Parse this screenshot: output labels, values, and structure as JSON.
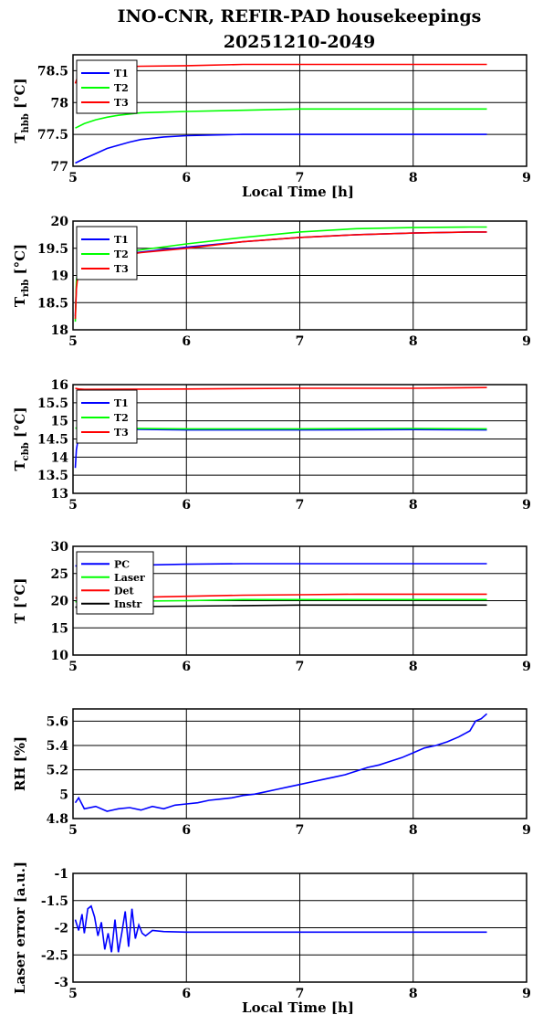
{
  "title_line1": "INO-CNR, REFIR-PAD housekeepings",
  "title_line2": "20251210-2049",
  "chart_data": [
    {
      "type": "line",
      "ylabel_main": "T",
      "ylabel_sub": "hbb",
      "ylabel_unit": " [°C]",
      "xlabel": "Local Time [h]",
      "xlim": [
        5,
        9
      ],
      "ylim": [
        77,
        78.75
      ],
      "yticks": [
        77,
        77.5,
        78,
        78.5
      ],
      "xticks": [
        5,
        6,
        7,
        8,
        9
      ],
      "legend_position": "top-left",
      "series": [
        {
          "name": "T1",
          "color": "#0000ff",
          "x": [
            5.02,
            5.1,
            5.2,
            5.3,
            5.4,
            5.5,
            5.6,
            5.8,
            6.0,
            6.5,
            7.0,
            7.5,
            8.0,
            8.5,
            8.65
          ],
          "y": [
            77.05,
            77.12,
            77.2,
            77.28,
            77.33,
            77.38,
            77.42,
            77.46,
            77.48,
            77.5,
            77.5,
            77.5,
            77.5,
            77.5,
            77.5
          ]
        },
        {
          "name": "T2",
          "color": "#00ff00",
          "x": [
            5.02,
            5.1,
            5.2,
            5.3,
            5.4,
            5.5,
            5.6,
            5.8,
            6.0,
            6.5,
            7.0,
            7.5,
            8.0,
            8.5,
            8.65
          ],
          "y": [
            77.6,
            77.67,
            77.73,
            77.77,
            77.8,
            77.82,
            77.84,
            77.85,
            77.86,
            77.88,
            77.9,
            77.9,
            77.9,
            77.9,
            77.9
          ]
        },
        {
          "name": "T3",
          "color": "#ff0000",
          "x": [
            5.02,
            5.05,
            5.1,
            5.2,
            5.4,
            5.6,
            6.0,
            6.5,
            7.0,
            7.5,
            8.0,
            8.5,
            8.65
          ],
          "y": [
            78.3,
            78.45,
            78.52,
            78.55,
            78.56,
            78.57,
            78.58,
            78.6,
            78.6,
            78.6,
            78.6,
            78.6,
            78.6
          ]
        }
      ]
    },
    {
      "type": "line",
      "ylabel_main": "T",
      "ylabel_sub": "rbb",
      "ylabel_unit": " [°C]",
      "xlabel": "",
      "xlim": [
        5,
        9
      ],
      "ylim": [
        18,
        20
      ],
      "yticks": [
        18,
        18.5,
        19,
        19.5,
        20
      ],
      "xticks": [
        5,
        6,
        7,
        8,
        9
      ],
      "legend_position": "top-left",
      "series": [
        {
          "name": "T1",
          "color": "#0000ff",
          "x": [
            5.02,
            5.03,
            5.05,
            5.08,
            5.2,
            5.4,
            5.6,
            6.0,
            6.5,
            7.0,
            7.5,
            8.0,
            8.5,
            8.65
          ],
          "y": [
            18.25,
            18.8,
            19.2,
            19.28,
            19.33,
            19.38,
            19.43,
            19.52,
            19.62,
            19.7,
            19.75,
            19.78,
            19.8,
            19.8
          ]
        },
        {
          "name": "T2",
          "color": "#00ff00",
          "x": [
            5.02,
            5.03,
            5.05,
            5.08,
            5.2,
            5.4,
            5.6,
            6.0,
            6.5,
            7.0,
            7.5,
            8.0,
            8.5,
            8.65
          ],
          "y": [
            18.15,
            18.9,
            19.25,
            19.33,
            19.38,
            19.42,
            19.47,
            19.58,
            19.7,
            19.8,
            19.86,
            19.88,
            19.89,
            19.89
          ]
        },
        {
          "name": "T3",
          "color": "#ff0000",
          "x": [
            5.02,
            5.03,
            5.05,
            5.08,
            5.2,
            5.4,
            5.6,
            6.0,
            6.5,
            7.0,
            7.5,
            8.0,
            8.5,
            8.65
          ],
          "y": [
            18.2,
            18.75,
            19.15,
            19.25,
            19.3,
            19.36,
            19.42,
            19.5,
            19.62,
            19.7,
            19.75,
            19.78,
            19.8,
            19.8
          ]
        }
      ]
    },
    {
      "type": "line",
      "ylabel_main": "T",
      "ylabel_sub": "cbb",
      "ylabel_unit": " [°C]",
      "xlabel": "",
      "xlim": [
        5,
        9
      ],
      "ylim": [
        13,
        16
      ],
      "yticks": [
        13,
        13.5,
        14,
        14.5,
        15,
        15.5,
        16
      ],
      "xticks": [
        5,
        6,
        7,
        8,
        9
      ],
      "legend_position": "top-left",
      "series": [
        {
          "name": "T1",
          "color": "#0000ff",
          "x": [
            5.02,
            5.03,
            5.05,
            5.08,
            5.15,
            6.0,
            7.0,
            8.0,
            8.65
          ],
          "y": [
            13.7,
            14.2,
            14.6,
            14.75,
            14.78,
            14.75,
            14.75,
            14.76,
            14.75
          ]
        },
        {
          "name": "T2",
          "color": "#00ff00",
          "x": [
            5.02,
            5.05,
            5.08,
            5.15,
            6.0,
            7.0,
            8.0,
            8.65
          ],
          "y": [
            14.8,
            14.8,
            14.8,
            14.8,
            14.78,
            14.78,
            14.79,
            14.78
          ]
        },
        {
          "name": "T3",
          "color": "#ff0000",
          "x": [
            5.02,
            5.05,
            5.1,
            6.0,
            7.0,
            8.0,
            8.65
          ],
          "y": [
            15.9,
            15.88,
            15.87,
            15.88,
            15.9,
            15.9,
            15.92
          ]
        }
      ]
    },
    {
      "type": "line",
      "ylabel_main": "T [°C]",
      "ylabel_sub": "",
      "ylabel_unit": "",
      "xlabel": "",
      "xlim": [
        5,
        9
      ],
      "ylim": [
        10,
        30
      ],
      "yticks": [
        10,
        15,
        20,
        25,
        30
      ],
      "xticks": [
        5,
        6,
        7,
        8,
        9
      ],
      "legend_position": "top-left",
      "series": [
        {
          "name": "PC",
          "color": "#0000ff",
          "x": [
            5.02,
            5.5,
            6.0,
            6.5,
            7.0,
            7.5,
            8.0,
            8.5,
            8.65
          ],
          "y": [
            26.4,
            26.5,
            26.7,
            26.8,
            26.8,
            26.8,
            26.8,
            26.8,
            26.8
          ]
        },
        {
          "name": "Laser",
          "color": "#00ff00",
          "x": [
            5.02,
            5.5,
            6.0,
            6.5,
            7.0,
            7.5,
            8.0,
            8.5,
            8.65
          ],
          "y": [
            19.8,
            19.9,
            20.0,
            20.2,
            20.2,
            20.2,
            20.2,
            20.2,
            20.2
          ]
        },
        {
          "name": "Det",
          "color": "#ff0000",
          "x": [
            5.02,
            5.5,
            6.0,
            6.5,
            7.0,
            7.5,
            8.0,
            8.5,
            8.65
          ],
          "y": [
            20.5,
            20.6,
            20.8,
            21.0,
            21.1,
            21.2,
            21.2,
            21.2,
            21.2
          ]
        },
        {
          "name": "Instr",
          "color": "#000000",
          "x": [
            5.02,
            5.5,
            6.0,
            6.5,
            7.0,
            7.5,
            8.0,
            8.5,
            8.65
          ],
          "y": [
            18.8,
            18.9,
            19.0,
            19.1,
            19.2,
            19.2,
            19.2,
            19.2,
            19.2
          ]
        }
      ]
    },
    {
      "type": "line",
      "ylabel_main": "RH [%]",
      "ylabel_sub": "",
      "ylabel_unit": "",
      "xlabel": "",
      "xlim": [
        5,
        9
      ],
      "ylim": [
        4.8,
        5.7
      ],
      "yticks": [
        4.8,
        5,
        5.2,
        5.4,
        5.6
      ],
      "xticks": [
        5,
        6,
        7,
        8,
        9
      ],
      "legend_position": "none",
      "series": [
        {
          "name": "",
          "color": "#0000ff",
          "x": [
            5.02,
            5.05,
            5.1,
            5.2,
            5.3,
            5.4,
            5.5,
            5.6,
            5.7,
            5.8,
            5.9,
            6.0,
            6.1,
            6.2,
            6.3,
            6.4,
            6.5,
            6.6,
            6.7,
            6.8,
            6.9,
            7.0,
            7.1,
            7.2,
            7.3,
            7.4,
            7.5,
            7.6,
            7.7,
            7.8,
            7.9,
            8.0,
            8.1,
            8.2,
            8.3,
            8.4,
            8.5,
            8.55,
            8.6,
            8.65
          ],
          "y": [
            4.93,
            4.97,
            4.88,
            4.9,
            4.86,
            4.88,
            4.89,
            4.87,
            4.9,
            4.88,
            4.91,
            4.92,
            4.93,
            4.95,
            4.96,
            4.97,
            4.99,
            5.0,
            5.02,
            5.04,
            5.06,
            5.08,
            5.1,
            5.12,
            5.14,
            5.16,
            5.19,
            5.22,
            5.24,
            5.27,
            5.3,
            5.34,
            5.38,
            5.4,
            5.43,
            5.47,
            5.52,
            5.6,
            5.62,
            5.66
          ]
        }
      ]
    },
    {
      "type": "line",
      "ylabel_main": "Laser error [a.u.]",
      "ylabel_sub": "",
      "ylabel_unit": "",
      "xlabel": "Local Time [h]",
      "xlim": [
        5,
        9
      ],
      "ylim": [
        -3,
        -1
      ],
      "yticks": [
        -3,
        -2.5,
        -2,
        -1.5,
        -1
      ],
      "xticks": [
        5,
        6,
        7,
        8,
        9
      ],
      "legend_position": "none",
      "series": [
        {
          "name": "",
          "color": "#0000ff",
          "x": [
            5.02,
            5.05,
            5.08,
            5.1,
            5.13,
            5.16,
            5.19,
            5.22,
            5.25,
            5.28,
            5.31,
            5.34,
            5.37,
            5.4,
            5.43,
            5.46,
            5.49,
            5.52,
            5.55,
            5.58,
            5.61,
            5.64,
            5.7,
            5.8,
            6.0,
            6.5,
            7.0,
            7.5,
            8.0,
            8.5,
            8.65
          ],
          "y": [
            -1.85,
            -2.05,
            -1.75,
            -2.1,
            -1.65,
            -1.6,
            -1.8,
            -2.15,
            -1.9,
            -2.4,
            -2.1,
            -2.45,
            -1.85,
            -2.45,
            -2.1,
            -1.7,
            -2.35,
            -1.65,
            -2.2,
            -1.95,
            -2.1,
            -2.15,
            -2.05,
            -2.07,
            -2.08,
            -2.08,
            -2.08,
            -2.08,
            -2.08,
            -2.08,
            -2.08
          ]
        }
      ]
    }
  ]
}
